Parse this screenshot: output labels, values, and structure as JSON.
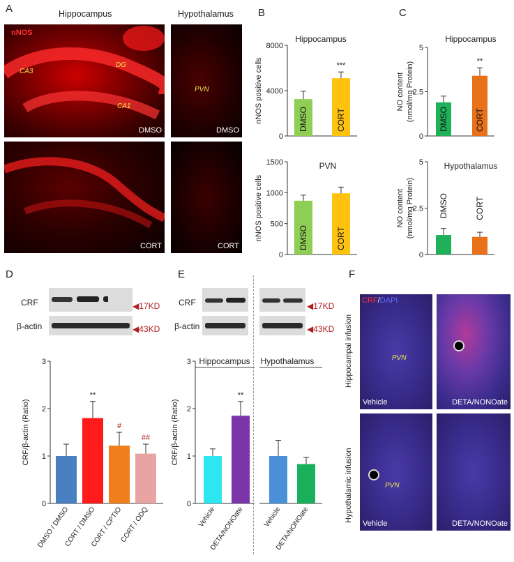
{
  "panels": {
    "A": {
      "letter": "A",
      "col_titles": [
        "Hippocampus",
        "Hypothalamus"
      ],
      "stain_label": "nNOS",
      "region_labels": [
        "CA3",
        "DG",
        "CA1",
        "PVN"
      ],
      "condition_labels": [
        "DMSO",
        "DMSO",
        "CORT",
        "CORT"
      ]
    },
    "B": {
      "letter": "B"
    },
    "C": {
      "letter": "C"
    },
    "D": {
      "letter": "D",
      "blot_rows": [
        "CRF",
        "β-actin"
      ],
      "blot_sizes": [
        "17KD",
        "43KD"
      ]
    },
    "E": {
      "letter": "E",
      "blot_rows": [
        "CRF",
        "β-actin"
      ],
      "blot_sizes": [
        "17KD",
        "43KD"
      ]
    },
    "F": {
      "letter": "F",
      "stain_crf": "CRF",
      "stain_sep": "/",
      "stain_dapi": "DAPI",
      "row_labels": [
        "Hippocampal infusion",
        "Hypothalamic infusion"
      ],
      "region_labels": [
        "PVN",
        "PVN"
      ],
      "condition_labels": [
        "Vehicle",
        "DETA/NONOate",
        "Vehicle",
        "DETA/NONOate"
      ]
    }
  },
  "chart_data": [
    {
      "id": "B-top",
      "type": "bar",
      "title": "Hippocampus",
      "ylabel": "nNOS positive cells",
      "ylim": [
        0,
        8000
      ],
      "yticks": [
        "0",
        "4000",
        "8000"
      ],
      "categories": [
        "DMSO",
        "CORT"
      ],
      "values": [
        3250,
        5100
      ],
      "errors": [
        700,
        550
      ],
      "colors": [
        "#8fce54",
        "#ffc20e"
      ],
      "annotations": [
        "",
        "***"
      ]
    },
    {
      "id": "B-bottom",
      "type": "bar",
      "title": "PVN",
      "ylabel": "nNOS positive cells",
      "ylim": [
        0,
        1500
      ],
      "yticks": [
        "0",
        "500",
        "1000",
        "1500"
      ],
      "categories": [
        "DMSO",
        "CORT"
      ],
      "values": [
        870,
        990
      ],
      "errors": [
        90,
        100
      ],
      "colors": [
        "#8fce54",
        "#ffc20e"
      ],
      "annotations": [
        "",
        ""
      ]
    },
    {
      "id": "C-top",
      "type": "bar",
      "title": "Hippocampus",
      "ylabel": "NO content (nmol/mg Protein)",
      "ylim": [
        0,
        5
      ],
      "yticks": [
        "0",
        "2.5",
        "5"
      ],
      "categories": [
        "DMSO",
        "CORT"
      ],
      "values": [
        1.9,
        3.4
      ],
      "errors": [
        0.35,
        0.45
      ],
      "colors": [
        "#1fb15a",
        "#e8711a"
      ],
      "annotations": [
        "",
        "**"
      ]
    },
    {
      "id": "C-bottom",
      "type": "bar",
      "title": "Hypothalamus",
      "ylabel": "NO content (nmol/mg Protein)",
      "ylim": [
        0,
        5
      ],
      "yticks": [
        "0",
        "2.5",
        "5"
      ],
      "categories": [
        "DMSO",
        "CORT"
      ],
      "values": [
        1.05,
        0.95
      ],
      "errors": [
        0.35,
        0.25
      ],
      "colors": [
        "#1fb15a",
        "#e8711a"
      ],
      "annotations": [
        "",
        ""
      ]
    },
    {
      "id": "D",
      "type": "bar",
      "title": "",
      "ylabel": "CRF/β-actin (Ratio)",
      "ylim": [
        0,
        3
      ],
      "yticks": [
        "0",
        "1",
        "2",
        "3"
      ],
      "categories": [
        "DMSO / DMSO",
        "CORT / DMSO",
        "CORT / CPTIO",
        "CORT / ODQ"
      ],
      "values": [
        1.0,
        1.8,
        1.22,
        1.05
      ],
      "errors": [
        0.25,
        0.35,
        0.28,
        0.2
      ],
      "colors": [
        "#4a7fc1",
        "#ff1b1b",
        "#f07e1d",
        "#e8a3a3"
      ],
      "annotations": [
        "",
        "**",
        "#",
        "##"
      ]
    },
    {
      "id": "E-left",
      "type": "bar",
      "title": "Hippocampus",
      "ylabel": "CRF/β-actin (Ratio)",
      "ylim": [
        0,
        3
      ],
      "yticks": [
        "0",
        "1",
        "2",
        "3"
      ],
      "categories": [
        "Vehicle",
        "DETA/NONOate"
      ],
      "values": [
        1.0,
        1.85
      ],
      "errors": [
        0.15,
        0.3
      ],
      "colors": [
        "#2ee6f0",
        "#7a35a8"
      ],
      "annotations": [
        "",
        "**"
      ]
    },
    {
      "id": "E-right",
      "type": "bar",
      "title": "Hypothalamus",
      "ylabel": "",
      "ylim": [
        0,
        3
      ],
      "yticks": [],
      "categories": [
        "Vehicle",
        "DETA/NONOate"
      ],
      "values": [
        1.0,
        0.83
      ],
      "errors": [
        0.33,
        0.14
      ],
      "colors": [
        "#4a90d9",
        "#18b05a"
      ],
      "annotations": [
        "",
        ""
      ]
    }
  ]
}
